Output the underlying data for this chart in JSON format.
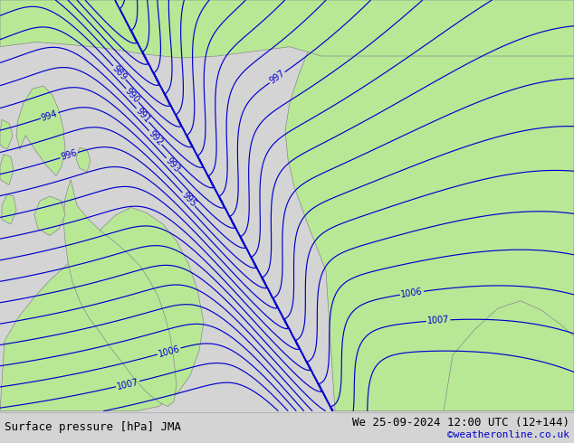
{
  "title_left": "Surface pressure [hPa] JMA",
  "title_right": "We 25-09-2024 12:00 UTC (12+144)",
  "credit": "©weatheronline.co.uk",
  "bg_ocean": "#d4d4d4",
  "land_color": "#b8e896",
  "border_color": "#888888",
  "contour_color": "#0000cc",
  "contour_lw": 0.85,
  "text_color": "#000000",
  "credit_color": "#0000cc",
  "pressure_min": 985,
  "pressure_max": 1008,
  "label_pressures": [
    989,
    990,
    991,
    992,
    993,
    994,
    995,
    996,
    997,
    1006,
    1007
  ],
  "figsize": [
    6.34,
    4.9
  ],
  "dpi": 100
}
